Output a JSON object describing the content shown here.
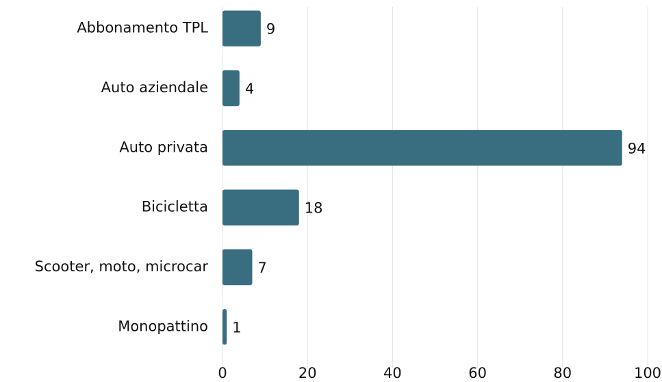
{
  "chart_data": {
    "type": "bar",
    "orientation": "horizontal",
    "categories": [
      "Abbonamento TPL",
      "Auto aziendale",
      "Auto privata",
      "Bicicletta",
      "Scooter, moto, microcar",
      "Monopattino"
    ],
    "values": [
      9,
      4,
      94,
      18,
      7,
      1
    ],
    "color": "#386e7f",
    "xlim": [
      0,
      100
    ],
    "xticks": [
      0,
      20,
      40,
      60,
      80,
      100
    ],
    "grid": true
  }
}
